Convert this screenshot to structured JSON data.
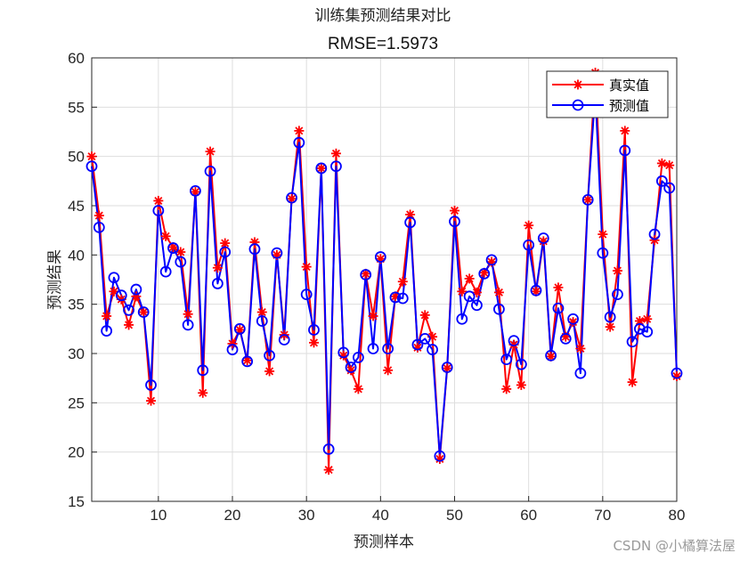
{
  "chart_data": {
    "type": "line",
    "title": "训练集预测结果对比",
    "subtitle": "RMSE=1.5973",
    "xlabel": "预测样本",
    "ylabel": "预测结果",
    "xlim": [
      1,
      80
    ],
    "ylim": [
      15,
      60
    ],
    "xticks": [
      10,
      20,
      30,
      40,
      50,
      60,
      70,
      80
    ],
    "yticks": [
      15,
      20,
      25,
      30,
      35,
      40,
      45,
      50,
      55,
      60
    ],
    "grid": true,
    "legend_position": "top-right",
    "series": [
      {
        "name": "真实值",
        "color": "#ff0000",
        "marker": "asterisk",
        "values": [
          50.0,
          44.0,
          33.8,
          36.3,
          35.5,
          32.9,
          35.8,
          34.2,
          25.2,
          45.5,
          41.9,
          40.8,
          40.3,
          34.0,
          46.4,
          26.0,
          50.5,
          38.7,
          41.2,
          31.0,
          32.4,
          29.3,
          41.3,
          34.2,
          28.2,
          40.0,
          31.9,
          45.7,
          52.6,
          38.8,
          31.1,
          48.8,
          18.2,
          50.3,
          29.8,
          28.3,
          26.4,
          38.1,
          33.8,
          39.6,
          28.3,
          35.8,
          37.3,
          44.1,
          30.6,
          33.9,
          31.7,
          19.3,
          28.5,
          44.5,
          36.3,
          37.6,
          36.2,
          38.2,
          39.3,
          36.2,
          26.4,
          30.9,
          26.8,
          43.0,
          36.3,
          41.4,
          29.7,
          36.7,
          31.7,
          33.2,
          30.5,
          45.6,
          58.5,
          42.1,
          32.7,
          38.4,
          52.6,
          27.1,
          33.3,
          33.5,
          41.5,
          49.3,
          49.1,
          27.7
        ]
      },
      {
        "name": "预测值",
        "color": "#0000ff",
        "marker": "circle",
        "values": [
          49.0,
          42.8,
          32.3,
          37.7,
          35.9,
          34.4,
          36.5,
          34.2,
          26.8,
          44.5,
          38.3,
          40.7,
          39.3,
          32.9,
          46.5,
          28.3,
          48.5,
          37.1,
          40.3,
          30.4,
          32.5,
          29.2,
          40.6,
          33.3,
          29.8,
          40.2,
          31.4,
          45.8,
          51.4,
          36.0,
          32.4,
          48.8,
          20.3,
          49.0,
          30.1,
          28.6,
          29.6,
          38.0,
          30.5,
          39.8,
          30.5,
          35.7,
          35.6,
          43.3,
          30.9,
          31.5,
          30.4,
          19.6,
          28.6,
          43.4,
          33.5,
          35.8,
          34.9,
          38.1,
          39.5,
          34.5,
          29.4,
          31.3,
          28.9,
          41.0,
          36.4,
          41.7,
          29.8,
          34.6,
          31.5,
          33.5,
          28.0,
          45.6,
          56.5,
          40.2,
          33.7,
          36.0,
          50.6,
          31.2,
          32.5,
          32.2,
          42.1,
          47.5,
          46.8,
          28.0
        ]
      }
    ]
  },
  "watermark": "CSDN @小橘算法屋"
}
